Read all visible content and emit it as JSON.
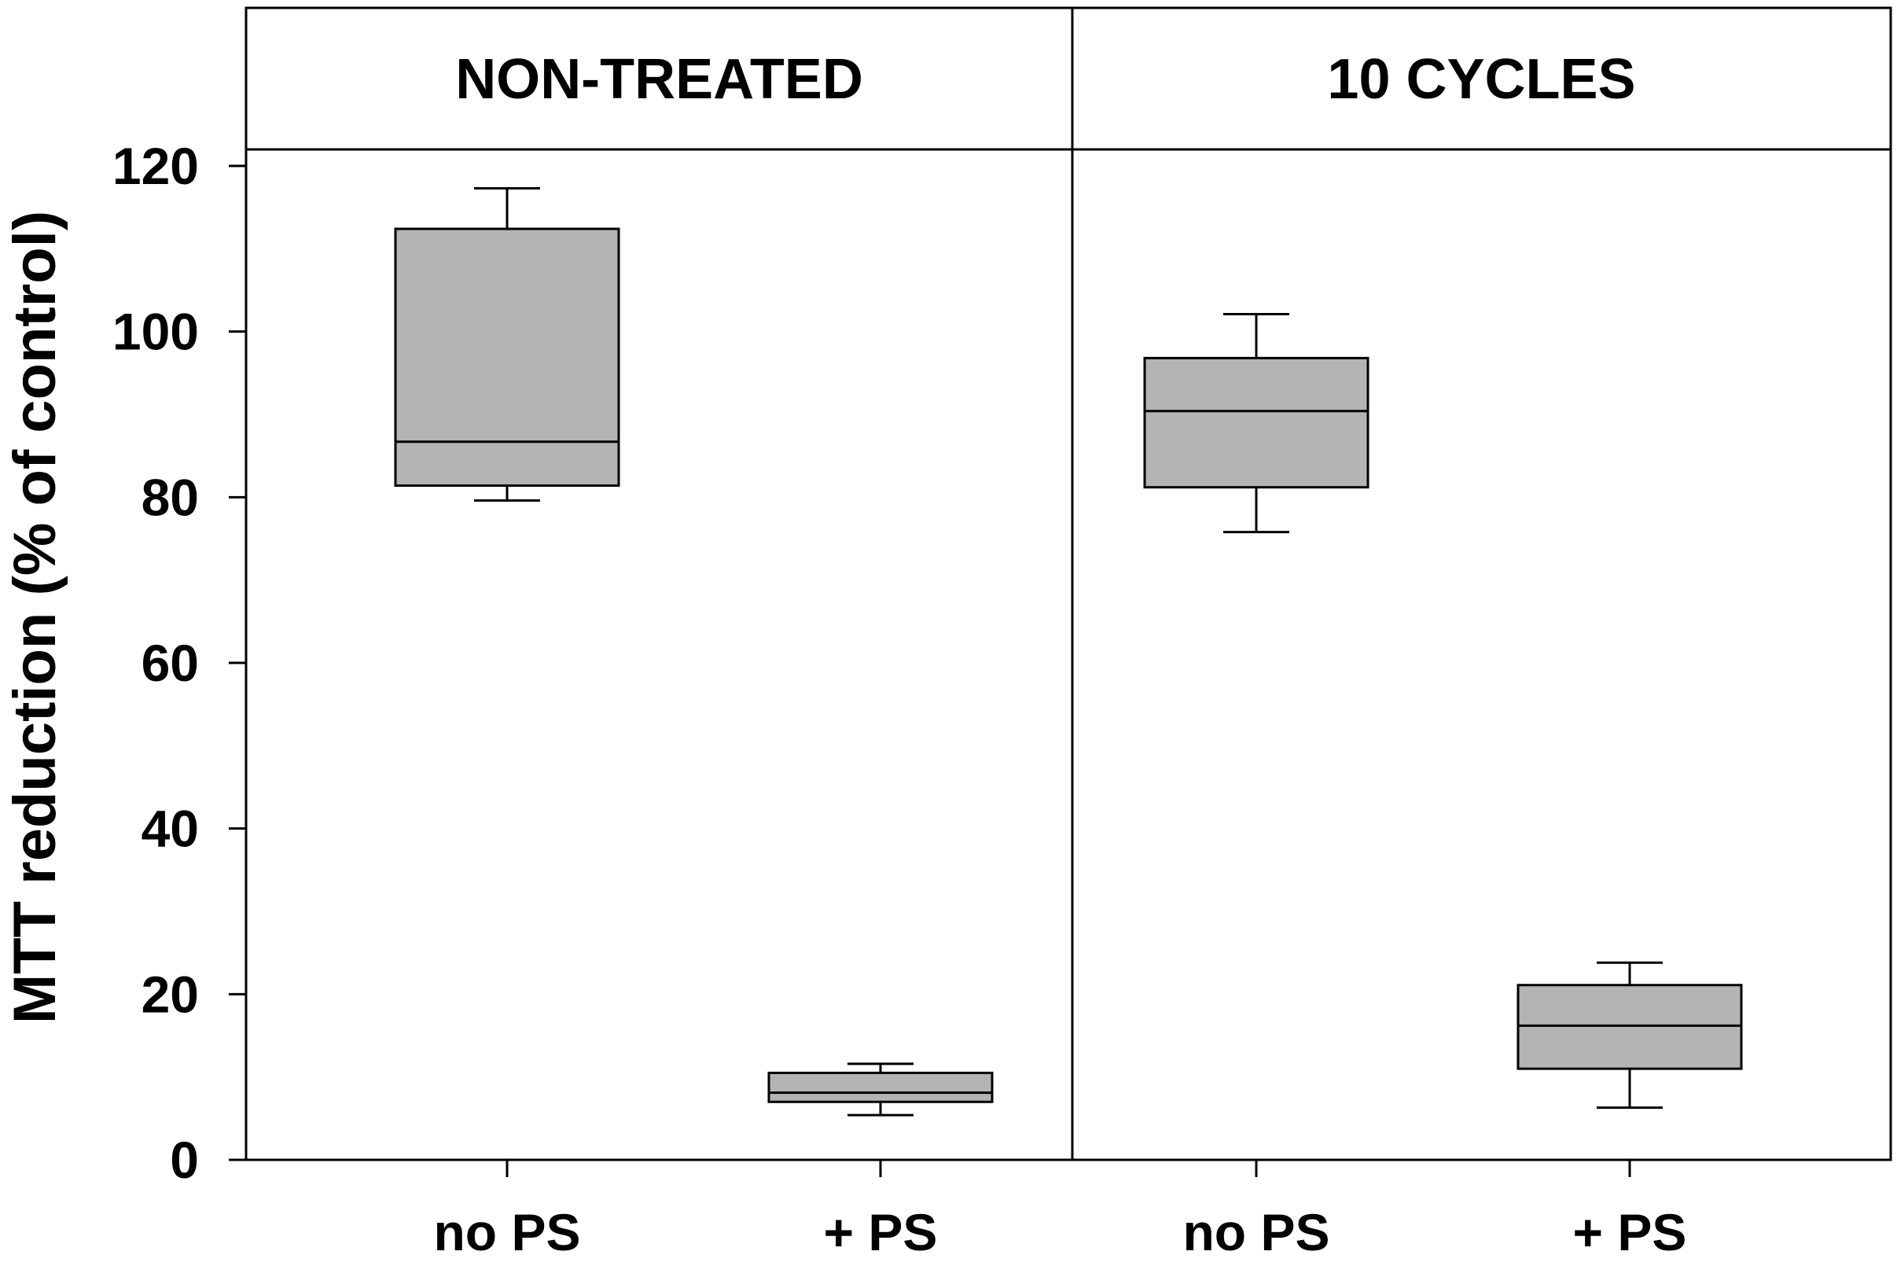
{
  "colors": {
    "box_fill": "#b4b4b4",
    "stroke": "#000000",
    "background": "#ffffff"
  },
  "chart_data": {
    "type": "box",
    "ylabel": "MTT reduction (% of control)",
    "ylim": [
      0,
      137
    ],
    "yticks": [
      0,
      20,
      40,
      60,
      80,
      100,
      120
    ],
    "panels": [
      {
        "title": "NON-TREATED",
        "categories": [
          "no PS",
          "+ PS"
        ],
        "boxes": [
          {
            "category": "no PS",
            "whisker_low": 79.6,
            "q1": 81.4,
            "median": 86.7,
            "q3": 112.4,
            "whisker_high": 117.3
          },
          {
            "category": "+ PS",
            "whisker_low": 5.4,
            "q1": 7.0,
            "median": 8.1,
            "q3": 10.5,
            "whisker_high": 11.6
          }
        ]
      },
      {
        "title": "10 CYCLES",
        "categories": [
          "no PS",
          "+ PS"
        ],
        "boxes": [
          {
            "category": "no PS",
            "whisker_low": 75.8,
            "q1": 81.2,
            "median": 90.4,
            "q3": 96.8,
            "whisker_high": 102.1
          },
          {
            "category": "+ PS",
            "whisker_low": 6.3,
            "q1": 11.0,
            "median": 16.2,
            "q3": 21.1,
            "whisker_high": 23.8
          }
        ]
      }
    ]
  }
}
